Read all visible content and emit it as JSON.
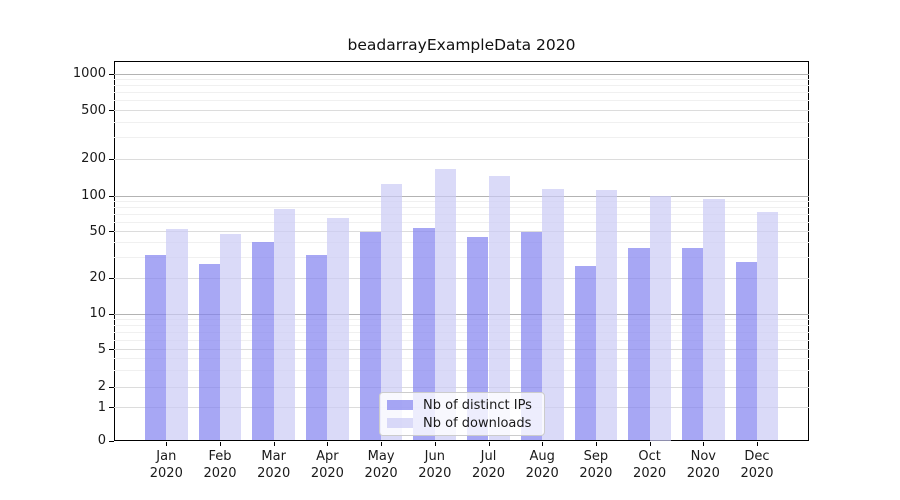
{
  "title": "beadarrayExampleData 2020",
  "colors": {
    "distinct_ips": "rgba(130,130,240,0.7)",
    "downloads": "rgba(202,202,245,0.7)",
    "grid_power10": "#b3b3b3",
    "grid_labeled": "#dcdcdc",
    "grid_minor": "#f0f0f0",
    "axis": "#000000"
  },
  "legend": {
    "items": [
      {
        "label": "Nb of distinct IPs",
        "series_key": "distinct_ips"
      },
      {
        "label": "Nb of downloads",
        "series_key": "downloads"
      }
    ]
  },
  "chart_data": {
    "type": "bar",
    "title": "beadarrayExampleData 2020",
    "categories": [
      "Jan 2020",
      "Feb 2020",
      "Mar 2020",
      "Apr 2020",
      "May 2020",
      "Jun 2020",
      "Jul 2020",
      "Aug 2020",
      "Sep 2020",
      "Oct 2020",
      "Nov 2020",
      "Dec 2020"
    ],
    "series": [
      {
        "name": "Nb of distinct IPs",
        "values": [
          31,
          26,
          40,
          31,
          49,
          53,
          44,
          49,
          25,
          36,
          36,
          27
        ]
      },
      {
        "name": "Nb of downloads",
        "values": [
          52,
          47,
          77,
          65,
          124,
          165,
          144,
          114,
          110,
          100,
          93,
          72
        ]
      }
    ],
    "xlabel": "",
    "ylabel": "",
    "yscale": "symlog",
    "yticks": [
      0,
      1,
      2,
      5,
      10,
      20,
      50,
      100,
      200,
      500,
      1000
    ],
    "ylim": [
      0,
      1300
    ],
    "grid": true,
    "legend_position": "lower center"
  }
}
